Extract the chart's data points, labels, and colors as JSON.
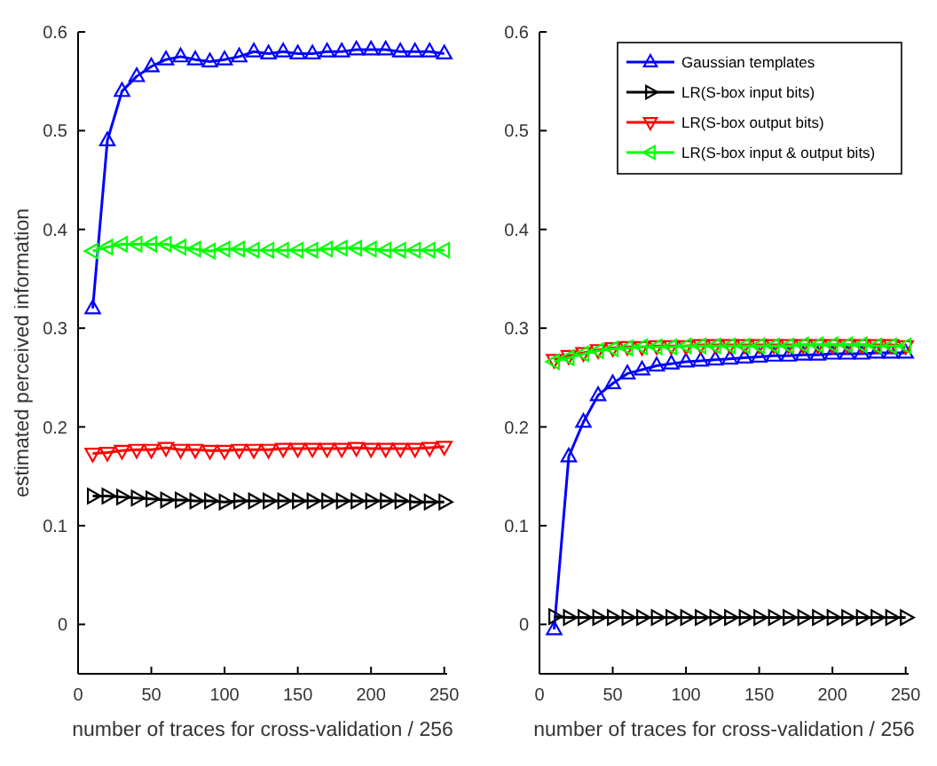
{
  "chart_data": [
    {
      "type": "line",
      "xlabel": "number of traces for cross-validation / 256",
      "ylabel": "estimated perceived information",
      "x": [
        10,
        20,
        30,
        40,
        50,
        60,
        70,
        80,
        90,
        100,
        110,
        120,
        130,
        140,
        150,
        160,
        170,
        180,
        190,
        200,
        210,
        220,
        230,
        240,
        250
      ],
      "xlim": [
        0,
        252
      ],
      "ylim": [
        -0.05,
        0.6
      ],
      "xticks": [
        0,
        50,
        100,
        150,
        200,
        250
      ],
      "yticks": [
        0,
        0.1,
        0.2,
        0.3,
        0.4,
        0.5,
        0.6
      ],
      "grid": false,
      "legend": false,
      "marker": "triangle",
      "line_style": "solid",
      "series": [
        {
          "color": "#0000ff",
          "values": [
            0.32,
            0.49,
            0.54,
            0.555,
            0.565,
            0.572,
            0.575,
            0.572,
            0.57,
            0.572,
            0.575,
            0.58,
            0.578,
            0.58,
            0.578,
            0.578,
            0.58,
            0.58,
            0.582,
            0.582,
            0.582,
            0.58,
            0.58,
            0.58,
            0.578
          ]
        },
        {
          "color": "#000000",
          "values": [
            0.13,
            0.13,
            0.129,
            0.128,
            0.127,
            0.126,
            0.126,
            0.125,
            0.125,
            0.124,
            0.125,
            0.125,
            0.125,
            0.125,
            0.125,
            0.125,
            0.125,
            0.125,
            0.125,
            0.125,
            0.125,
            0.125,
            0.124,
            0.124,
            0.124
          ]
        },
        {
          "color": "#ff0000",
          "values": [
            0.173,
            0.174,
            0.176,
            0.177,
            0.177,
            0.179,
            0.177,
            0.177,
            0.176,
            0.176,
            0.177,
            0.177,
            0.177,
            0.178,
            0.178,
            0.178,
            0.178,
            0.178,
            0.179,
            0.178,
            0.178,
            0.178,
            0.178,
            0.179,
            0.18
          ]
        },
        {
          "color": "#00ff00",
          "values": [
            0.378,
            0.382,
            0.385,
            0.385,
            0.385,
            0.385,
            0.382,
            0.38,
            0.378,
            0.38,
            0.38,
            0.379,
            0.379,
            0.379,
            0.379,
            0.379,
            0.38,
            0.381,
            0.381,
            0.38,
            0.379,
            0.379,
            0.379,
            0.379,
            0.379
          ]
        }
      ]
    },
    {
      "type": "line",
      "xlabel": "number of traces for cross-validation / 256",
      "x": [
        10,
        20,
        30,
        40,
        50,
        60,
        70,
        80,
        90,
        100,
        110,
        120,
        130,
        140,
        150,
        160,
        170,
        180,
        190,
        200,
        210,
        220,
        230,
        240,
        250
      ],
      "xlim": [
        0,
        252
      ],
      "ylim": [
        -0.05,
        0.6
      ],
      "xticks": [
        0,
        50,
        100,
        150,
        200,
        250
      ],
      "yticks": [
        0,
        0.1,
        0.2,
        0.3,
        0.4,
        0.5,
        0.6
      ],
      "grid": false,
      "legend": "top right",
      "marker": "triangle",
      "line_style": "solid",
      "series": [
        {
          "name": "Gaussian templates",
          "color": "#0000ff",
          "values": [
            -0.005,
            0.17,
            0.205,
            0.232,
            0.244,
            0.254,
            0.258,
            0.262,
            0.264,
            0.266,
            0.267,
            0.268,
            0.269,
            0.27,
            0.271,
            0.272,
            0.272,
            0.273,
            0.273,
            0.274,
            0.274,
            0.274,
            0.275,
            0.275,
            0.275
          ]
        },
        {
          "name": "LR(S-box input bits)",
          "color": "#000000",
          "values": [
            0.008,
            0.007,
            0.007,
            0.007,
            0.007,
            0.007,
            0.007,
            0.007,
            0.007,
            0.007,
            0.007,
            0.007,
            0.007,
            0.007,
            0.007,
            0.007,
            0.007,
            0.007,
            0.007,
            0.007,
            0.007,
            0.007,
            0.007,
            0.007,
            0.007
          ]
        },
        {
          "name": "LR(S-box output bits)",
          "color": "#ff0000",
          "values": [
            0.268,
            0.272,
            0.275,
            0.278,
            0.28,
            0.281,
            0.281,
            0.282,
            0.282,
            0.282,
            0.283,
            0.283,
            0.283,
            0.283,
            0.283,
            0.283,
            0.283,
            0.283,
            0.283,
            0.283,
            0.283,
            0.283,
            0.283,
            0.283,
            0.282
          ]
        },
        {
          "name": "LR(S-box input & output bits)",
          "color": "#00ff00",
          "values": [
            0.266,
            0.27,
            0.274,
            0.277,
            0.279,
            0.28,
            0.281,
            0.281,
            0.281,
            0.282,
            0.282,
            0.282,
            0.282,
            0.282,
            0.282,
            0.282,
            0.282,
            0.283,
            0.283,
            0.283,
            0.283,
            0.283,
            0.282,
            0.282,
            0.282
          ]
        }
      ]
    }
  ]
}
